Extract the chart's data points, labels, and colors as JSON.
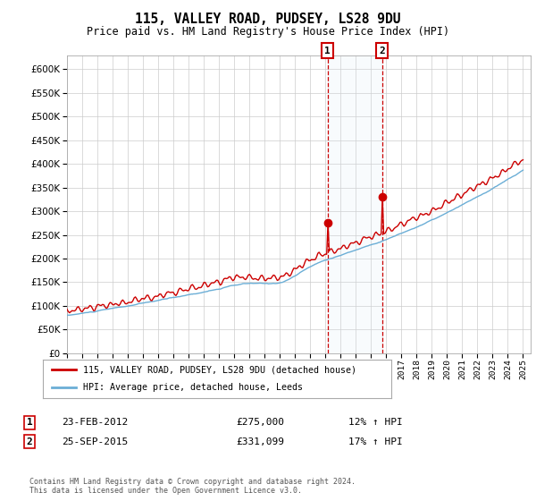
{
  "title": "115, VALLEY ROAD, PUDSEY, LS28 9DU",
  "subtitle": "Price paid vs. HM Land Registry's House Price Index (HPI)",
  "yticks": [
    0,
    50000,
    100000,
    150000,
    200000,
    250000,
    300000,
    350000,
    400000,
    450000,
    500000,
    550000,
    600000
  ],
  "ylim": [
    0,
    630000
  ],
  "xlim": [
    1995,
    2025.5
  ],
  "legend_line1": "115, VALLEY ROAD, PUDSEY, LS28 9DU (detached house)",
  "legend_line2": "HPI: Average price, detached house, Leeds",
  "annotation1_label": "1",
  "annotation1_date": "23-FEB-2012",
  "annotation1_price": "£275,000",
  "annotation1_hpi": "12% ↑ HPI",
  "annotation2_label": "2",
  "annotation2_date": "25-SEP-2015",
  "annotation2_price": "£331,099",
  "annotation2_hpi": "17% ↑ HPI",
  "copyright": "Contains HM Land Registry data © Crown copyright and database right 2024.\nThis data is licensed under the Open Government Licence v3.0.",
  "hpi_color": "#6baed6",
  "price_color": "#cc0000",
  "annotation_vline_color": "#cc0000",
  "annotation_box_color": "#cc0000",
  "shade_color": "#dce9f5",
  "grid_color": "#cccccc",
  "background_color": "#ffffff",
  "t1": 2012.14,
  "t2": 2015.73,
  "p1": 275000,
  "p2": 331099
}
